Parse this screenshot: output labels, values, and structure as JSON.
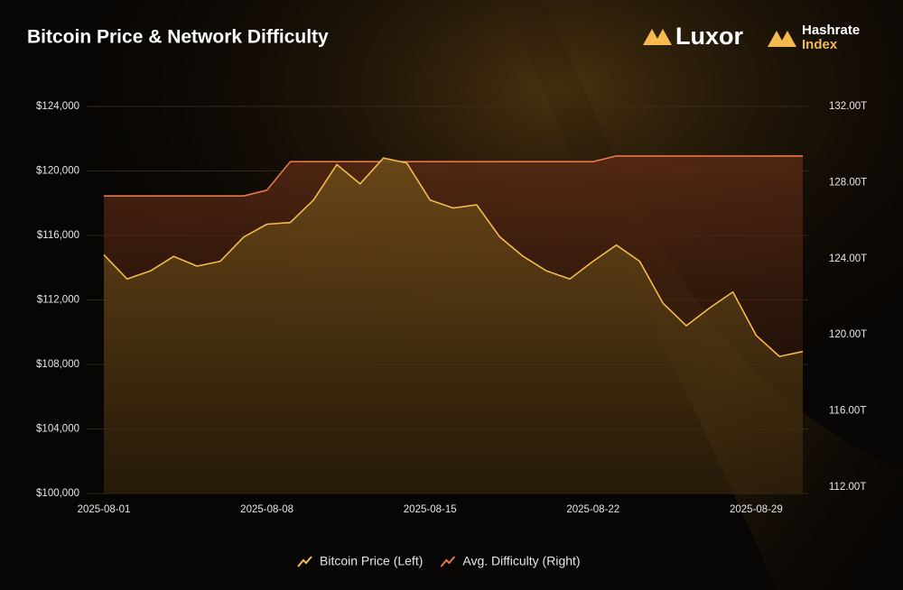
{
  "brand": {
    "logo": "Luxor",
    "index_line1": "Hashrate",
    "index_line2": "Index"
  },
  "chart_data": {
    "type": "line",
    "title": "Bitcoin Price & Network Difficulty",
    "categories": [
      "2025-08-01",
      null,
      null,
      null,
      null,
      null,
      null,
      "2025-08-08",
      null,
      null,
      null,
      null,
      null,
      null,
      "2025-08-15",
      null,
      null,
      null,
      null,
      null,
      null,
      "2025-08-22",
      null,
      null,
      null,
      null,
      null,
      null,
      "2025-08-29",
      null,
      null
    ],
    "series": [
      {
        "name": "Bitcoin Price (Left)",
        "color": "#f4b94f",
        "axis": "y",
        "values": [
          114800,
          113300,
          113800,
          114700,
          114100,
          114400,
          115900,
          116700,
          116800,
          118200,
          120400,
          119200,
          120800,
          120500,
          118200,
          117700,
          117900,
          115900,
          114700,
          113800,
          113300,
          114400,
          115400,
          114400,
          111800,
          110400,
          111500,
          112500,
          109800,
          108500,
          108800
        ]
      },
      {
        "name": "Avg. Difficulty (Right)",
        "color": "#e8774a",
        "axis": "y2",
        "values": [
          127.3,
          127.3,
          127.3,
          127.3,
          127.3,
          127.3,
          127.3,
          127.6,
          129.1,
          129.1,
          129.1,
          129.1,
          129.1,
          129.1,
          129.1,
          129.1,
          129.1,
          129.1,
          129.1,
          129.1,
          129.1,
          129.1,
          129.4,
          129.4,
          129.4,
          129.4,
          129.4,
          129.4,
          129.4,
          129.4,
          129.4
        ]
      }
    ],
    "ylim": [
      100000,
      124000
    ],
    "yticks": [
      {
        "value": 100000,
        "label": "$100,000"
      },
      {
        "value": 104000,
        "label": "$104,000"
      },
      {
        "value": 108000,
        "label": "$108,000"
      },
      {
        "value": 112000,
        "label": "$112,000"
      },
      {
        "value": 116000,
        "label": "$116,000"
      },
      {
        "value": 120000,
        "label": "$120,000"
      },
      {
        "value": 124000,
        "label": "$124,000"
      }
    ],
    "y2lim": [
      112,
      132
    ],
    "y2ticks": [
      {
        "value": 112,
        "label": "112.00T"
      },
      {
        "value": 116,
        "label": "116.00T"
      },
      {
        "value": 120,
        "label": "120.00T"
      },
      {
        "value": 124,
        "label": "124.00T"
      },
      {
        "value": 128,
        "label": "128.00T"
      },
      {
        "value": 132,
        "label": "132.00T"
      }
    ],
    "grid": true,
    "legend": "bottom"
  }
}
